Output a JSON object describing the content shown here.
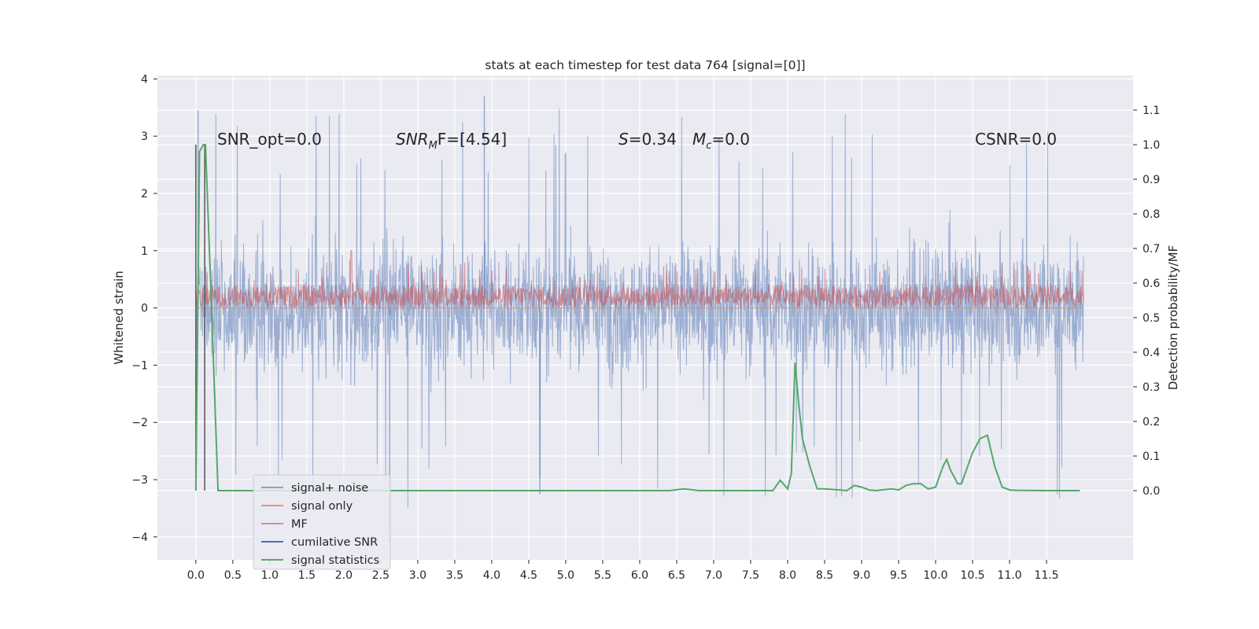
{
  "chart_data": {
    "type": "line",
    "title": "stats at each timestep for test data 764 [signal=[0]]",
    "xlabel": "",
    "ylabel": "Whitened strain",
    "y2label": "Detection probability/MF",
    "xlim": [
      -0.52,
      12.67
    ],
    "ylim": [
      -4.4,
      4.06
    ],
    "y2lim": [
      -0.2,
      1.2
    ],
    "xticks": [
      "0.0",
      "0.5",
      "1.0",
      "1.5",
      "2.0",
      "2.5",
      "3.0",
      "3.5",
      "4.0",
      "4.5",
      "5.0",
      "5.5",
      "6.0",
      "6.5",
      "7.0",
      "7.5",
      "8.0",
      "8.5",
      "9.0",
      "9.5",
      "10.0",
      "10.5",
      "11.0",
      "11.5"
    ],
    "yticks": [
      "4",
      "3",
      "2",
      "1",
      "0",
      "−1",
      "−2",
      "−3",
      "−4"
    ],
    "y2ticks": [
      "1.1",
      "1.0",
      "0.9",
      "0.8",
      "0.7",
      "0.6",
      "0.5",
      "0.4",
      "0.3",
      "0.2",
      "0.1",
      "0.0"
    ],
    "grid": true,
    "legend_position": "lower-left",
    "annotations": {
      "snr_opt": "SNR_opt=0.0",
      "snr_mf_prefix": "SNR",
      "snr_mf_sub": "M",
      "snr_mf_suffix": "F=[4.54]",
      "s_prefix": "S",
      "s_value": "=0.34",
      "mc_prefix": "M",
      "mc_sub": "c",
      "mc_value": "=0.0",
      "csnr": "CSNR=0.0"
    },
    "series": [
      {
        "name": "signal+ noise",
        "color": "#4c72b0",
        "x_range": [
          0.0,
          12.0
        ],
        "typical_range": [
          -1.6,
          1.6
        ],
        "peak_max": 3.7,
        "peak_min": -4.1
      },
      {
        "name": "signal only",
        "color": "#dd8452",
        "x_range": [
          0.0,
          12.0
        ],
        "values": [
          0.0
        ]
      },
      {
        "name": "MF",
        "color": "#c44e52",
        "x_range": [
          0.0,
          12.0
        ],
        "typical_range": [
          0.0,
          0.4
        ],
        "peak_max": 1.0
      },
      {
        "name": "cumilative SNR",
        "color": "#4c72b0",
        "x_range": [
          0.0,
          12.0
        ]
      },
      {
        "name": "signal statistics",
        "color": "#55a868",
        "axis": "right",
        "x": [
          0.0,
          0.05,
          0.1,
          0.13,
          0.2,
          0.3,
          0.5,
          1.0,
          2.0,
          3.0,
          4.0,
          5.0,
          6.0,
          6.4,
          6.6,
          6.8,
          7.0,
          7.5,
          7.8,
          7.9,
          8.0,
          8.05,
          8.1,
          8.15,
          8.2,
          8.3,
          8.4,
          8.5,
          8.7,
          8.8,
          8.9,
          9.0,
          9.1,
          9.2,
          9.4,
          9.5,
          9.6,
          9.7,
          9.8,
          9.9,
          10.0,
          10.1,
          10.15,
          10.2,
          10.3,
          10.35,
          10.4,
          10.5,
          10.6,
          10.7,
          10.8,
          10.9,
          11.0,
          11.1,
          11.5,
          11.95
        ],
        "values": [
          0.0,
          0.98,
          1.0,
          1.0,
          0.6,
          0.0,
          0.0,
          0.0,
          0.0,
          0.0,
          0.0,
          0.0,
          0.0,
          0.0,
          0.005,
          0.0,
          0.0,
          0.0,
          0.0,
          0.03,
          0.005,
          0.05,
          0.37,
          0.25,
          0.15,
          0.07,
          0.005,
          0.005,
          0.002,
          0.0,
          0.015,
          0.01,
          0.002,
          0.0,
          0.005,
          0.002,
          0.015,
          0.02,
          0.02,
          0.005,
          0.01,
          0.07,
          0.09,
          0.06,
          0.02,
          0.02,
          0.05,
          0.11,
          0.15,
          0.16,
          0.07,
          0.01,
          0.002,
          0.001,
          0.0,
          0.0
        ]
      }
    ],
    "vertical_lines": [
      0.0,
      0.12
    ]
  }
}
